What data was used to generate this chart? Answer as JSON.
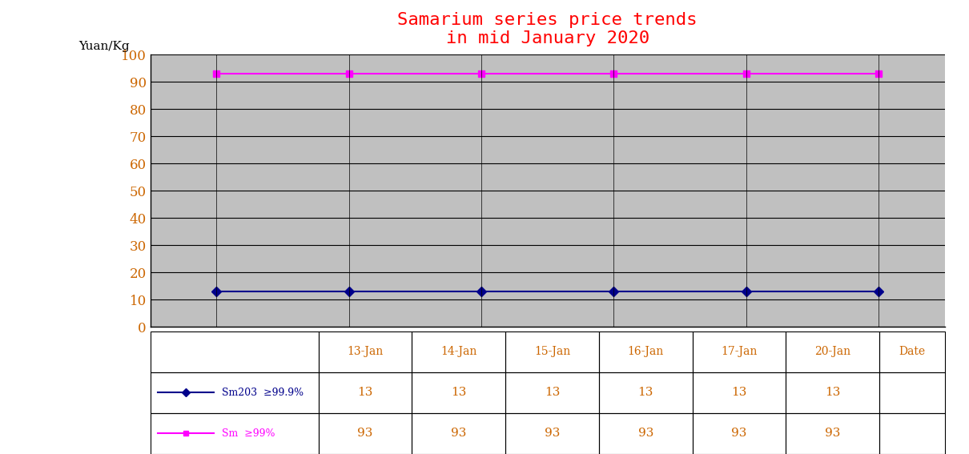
{
  "title_line1": "Samarium series price trends",
  "title_line2": "in mid January 2020",
  "title_color": "#FF0000",
  "ylabel": "Yuan/Kg",
  "xlabel": "Date",
  "dates": [
    "13-Jan",
    "14-Jan",
    "15-Jan",
    "16-Jan",
    "17-Jan",
    "20-Jan"
  ],
  "series": [
    {
      "label": "Sm203  ≥99.9%",
      "values": [
        13,
        13,
        13,
        13,
        13,
        13
      ],
      "color": "#00008B",
      "marker": "D",
      "markersize": 6,
      "linewidth": 1.5
    },
    {
      "label": "Sm  ≥99%",
      "values": [
        93,
        93,
        93,
        93,
        93,
        93
      ],
      "color": "#FF00FF",
      "marker": "s",
      "markersize": 6,
      "linewidth": 1.5
    }
  ],
  "ylim": [
    0,
    100
  ],
  "yticks": [
    0,
    10,
    20,
    30,
    40,
    50,
    60,
    70,
    80,
    90,
    100
  ],
  "tick_label_color": "#CC6600",
  "plot_bg_color": "#C0C0C0",
  "fig_bg_color": "#FFFFFF",
  "grid_color": "#000000",
  "table_values": [
    [
      "13",
      "13",
      "13",
      "13",
      "13",
      "13"
    ],
    [
      "93",
      "93",
      "93",
      "93",
      "93",
      "93"
    ]
  ],
  "table_value_color": "#CC6600"
}
